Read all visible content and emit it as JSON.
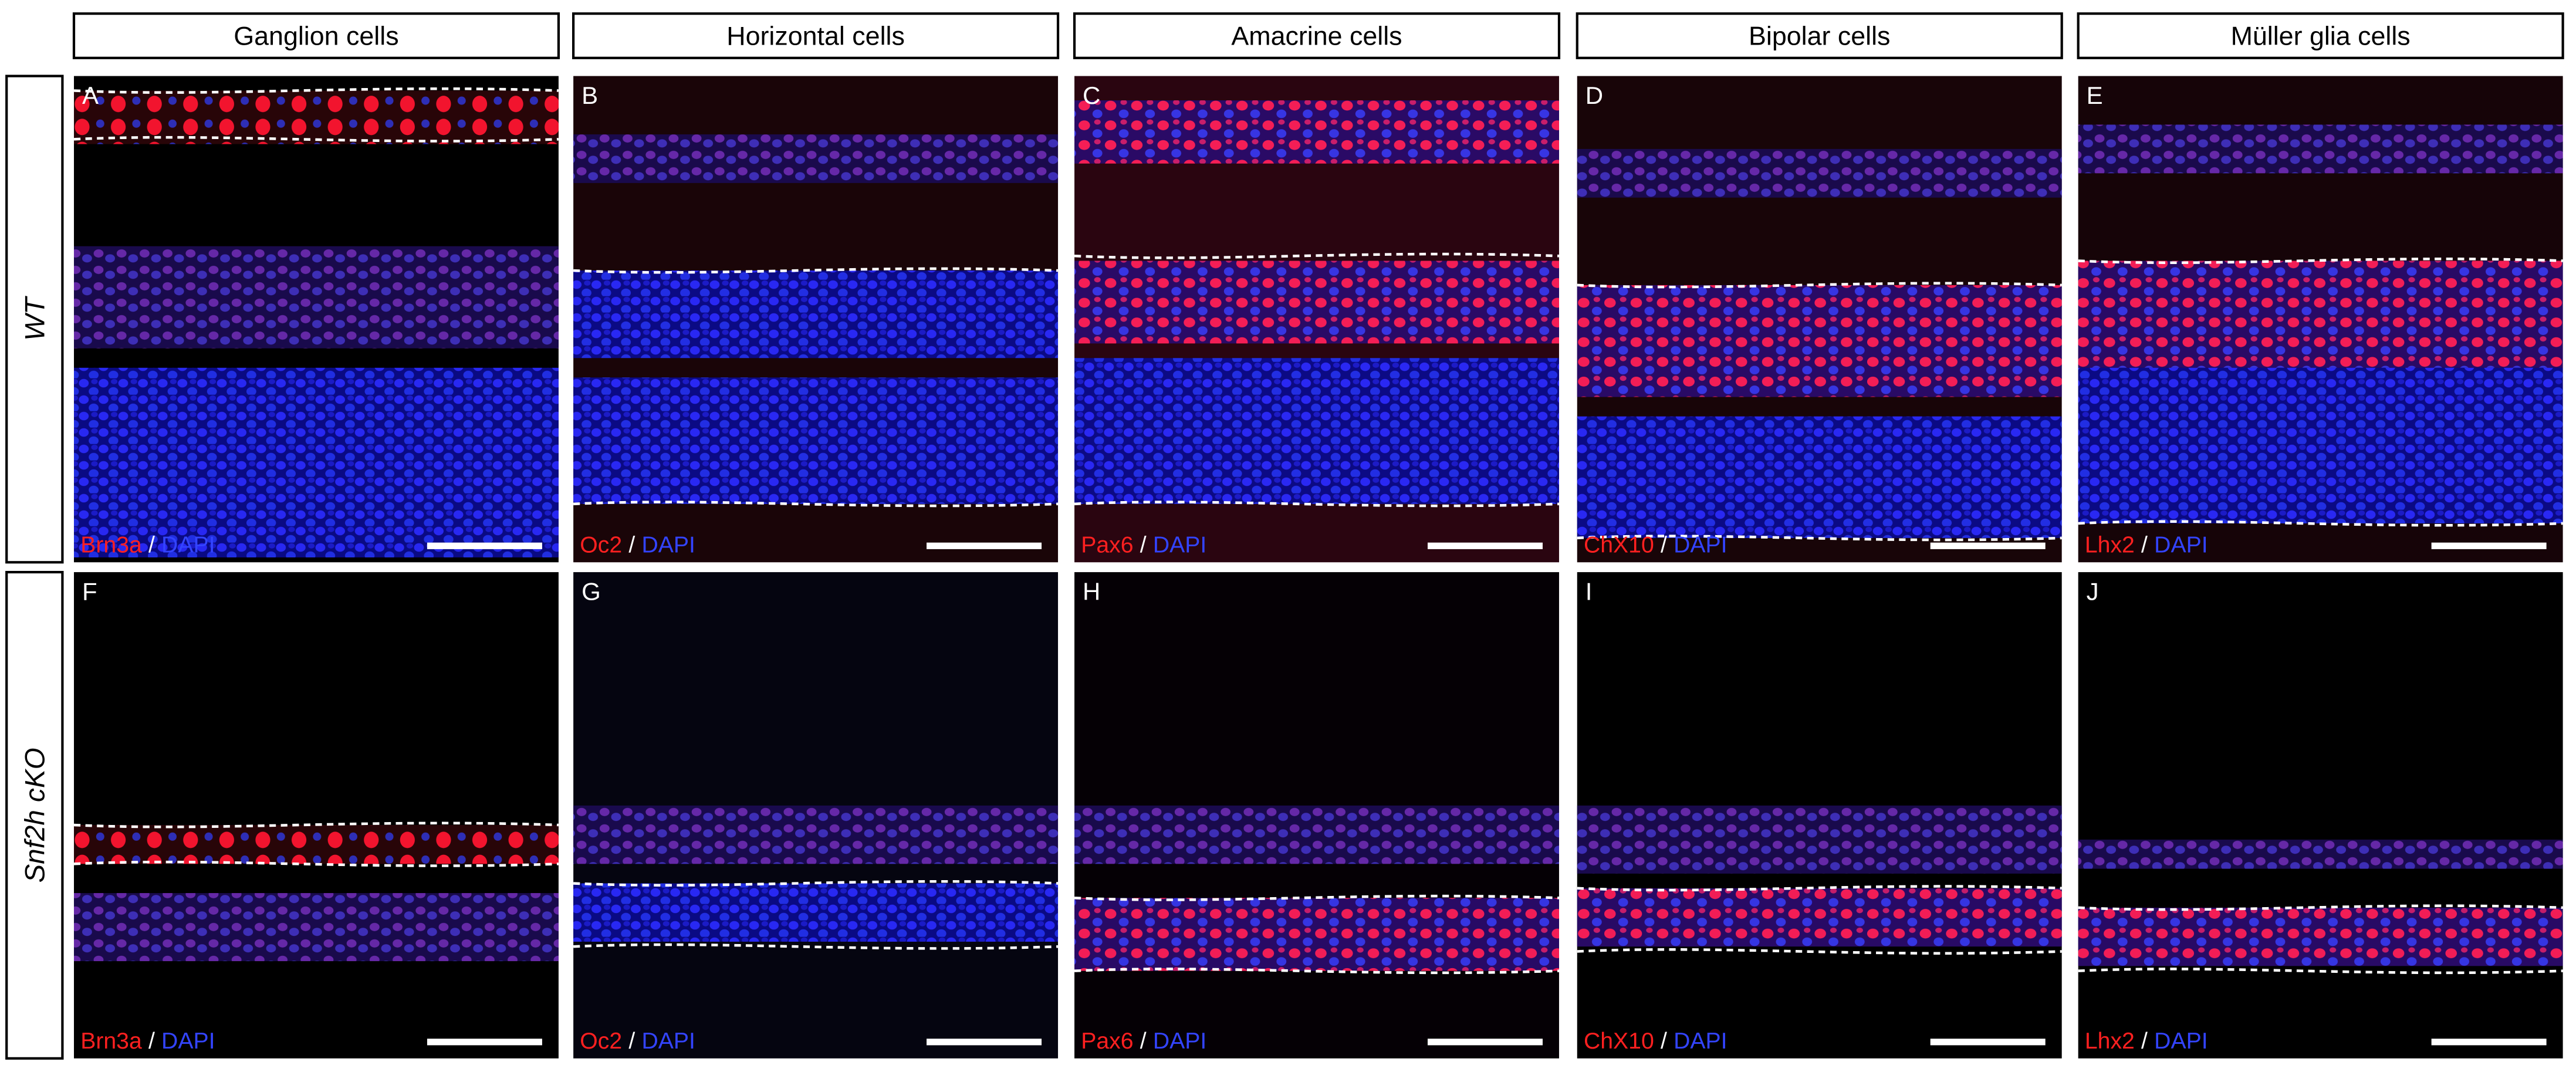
{
  "column_headers": [
    "Ganglion cells",
    "Horizontal cells",
    "Amacrine cells",
    "Bipolar cells",
    "Müller glia cells"
  ],
  "row_labels": [
    "WT",
    "Snf2h cKO"
  ],
  "panels": [
    {
      "letter": "A",
      "marker": "Brn3a",
      "separator": "/",
      "counterstain": "DAPI"
    },
    {
      "letter": "B",
      "marker": "Oc2",
      "separator": "/",
      "counterstain": "DAPI"
    },
    {
      "letter": "C",
      "marker": "Pax6",
      "separator": "/",
      "counterstain": "DAPI"
    },
    {
      "letter": "D",
      "marker": "ChX10",
      "separator": "/",
      "counterstain": "DAPI"
    },
    {
      "letter": "E",
      "marker": "Lhx2",
      "separator": "/",
      "counterstain": "DAPI"
    },
    {
      "letter": "F",
      "marker": "Brn3a",
      "separator": "/",
      "counterstain": "DAPI"
    },
    {
      "letter": "G",
      "marker": "Oc2",
      "separator": "/",
      "counterstain": "DAPI"
    },
    {
      "letter": "H",
      "marker": "Pax6",
      "separator": "/",
      "counterstain": "DAPI"
    },
    {
      "letter": "I",
      "marker": "ChX10",
      "separator": "/",
      "counterstain": "DAPI"
    },
    {
      "letter": "J",
      "marker": "Lhx2",
      "separator": "/",
      "counterstain": "DAPI"
    }
  ]
}
